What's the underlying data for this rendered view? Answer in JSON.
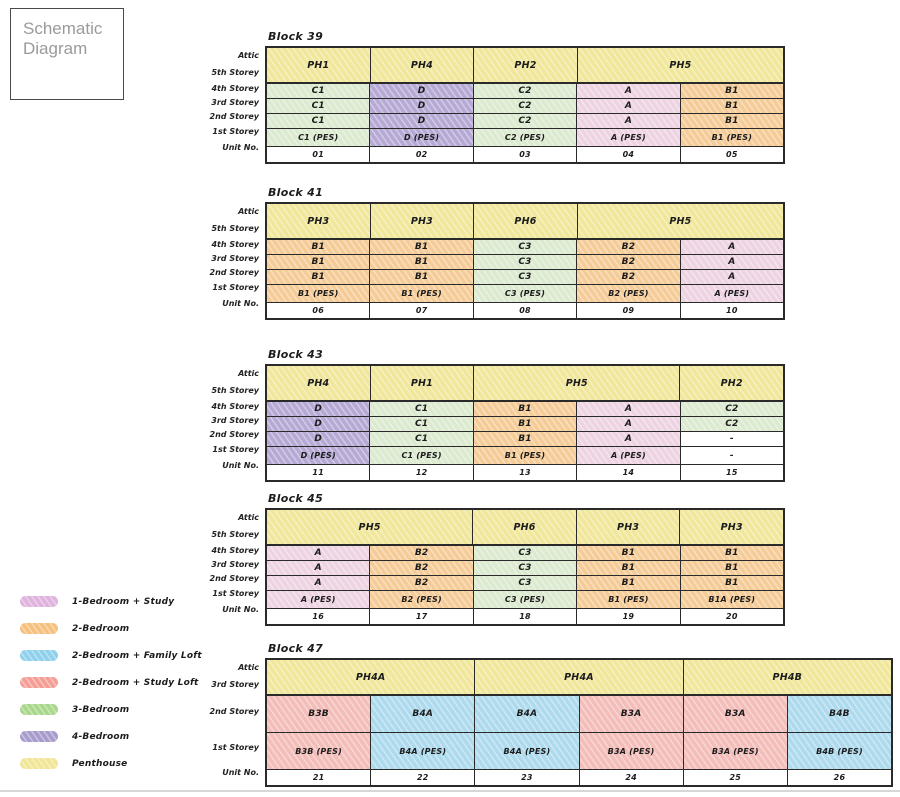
{
  "page_title": "Schematic Diagram",
  "cell_colors": {
    "penthouse": "#f1e79b",
    "one_bed_study": "#eed3e2",
    "two_bed": "#f5cc97",
    "two_bed_family_loft": "#aedaee",
    "two_bed_study_loft": "#f3bdb9",
    "three_bed": "#dcead0",
    "four_bed": "#b6aad5",
    "blank": "#ffffff"
  },
  "legend": [
    {
      "label": "1-Bedroom + Study",
      "color": "#dfb3de"
    },
    {
      "label": "2-Bedroom",
      "color": "#f6c07e"
    },
    {
      "label": "2-Bedroom + Family Loft",
      "color": "#8fd0ec"
    },
    {
      "label": "2-Bedroom + Study Loft",
      "color": "#f49e96"
    },
    {
      "label": "3-Bedroom",
      "color": "#a9d78b"
    },
    {
      "label": "4-Bedroom",
      "color": "#a89ccc"
    },
    {
      "label": "Penthouse",
      "color": "#f1e697"
    }
  ],
  "blocks": [
    {
      "title": "Block 39",
      "labels": {
        "attic_band": [
          "Attic",
          "5th Storey"
        ],
        "rows": [
          "4th Storey",
          "3rd Storey",
          "2nd Storey",
          "1st Storey"
        ],
        "unit": "Unit No."
      },
      "header_cells": [
        {
          "text": "PH1",
          "span": 1
        },
        {
          "text": "PH4",
          "span": 1
        },
        {
          "text": "PH2",
          "span": 1
        },
        {
          "text": "PH5",
          "span": 2
        }
      ],
      "body_rows": [
        [
          {
            "t": "C1",
            "c": "three_bed"
          },
          {
            "t": "D",
            "c": "four_bed"
          },
          {
            "t": "C2",
            "c": "three_bed"
          },
          {
            "t": "A",
            "c": "one_bed_study"
          },
          {
            "t": "B1",
            "c": "two_bed"
          }
        ],
        [
          {
            "t": "C1",
            "c": "three_bed"
          },
          {
            "t": "D",
            "c": "four_bed"
          },
          {
            "t": "C2",
            "c": "three_bed"
          },
          {
            "t": "A",
            "c": "one_bed_study"
          },
          {
            "t": "B1",
            "c": "two_bed"
          }
        ],
        [
          {
            "t": "C1",
            "c": "three_bed"
          },
          {
            "t": "D",
            "c": "four_bed"
          },
          {
            "t": "C2",
            "c": "three_bed"
          },
          {
            "t": "A",
            "c": "one_bed_study"
          },
          {
            "t": "B1",
            "c": "two_bed"
          }
        ],
        [
          {
            "t": "C1 (PES)",
            "c": "three_bed"
          },
          {
            "t": "D (PES)",
            "c": "four_bed"
          },
          {
            "t": "C2 (PES)",
            "c": "three_bed"
          },
          {
            "t": "A (PES)",
            "c": "one_bed_study"
          },
          {
            "t": "B1 (PES)",
            "c": "two_bed"
          }
        ]
      ],
      "unit_row": [
        "01",
        "02",
        "03",
        "04",
        "05"
      ]
    },
    {
      "title": "Block 41",
      "labels": {
        "attic_band": [
          "Attic",
          "5th Storey"
        ],
        "rows": [
          "4th Storey",
          "3rd Storey",
          "2nd Storey",
          "1st Storey"
        ],
        "unit": "Unit No."
      },
      "header_cells": [
        {
          "text": "PH3",
          "span": 1
        },
        {
          "text": "PH3",
          "span": 1
        },
        {
          "text": "PH6",
          "span": 1
        },
        {
          "text": "PH5",
          "span": 2
        }
      ],
      "body_rows": [
        [
          {
            "t": "B1",
            "c": "two_bed"
          },
          {
            "t": "B1",
            "c": "two_bed"
          },
          {
            "t": "C3",
            "c": "three_bed"
          },
          {
            "t": "B2",
            "c": "two_bed"
          },
          {
            "t": "A",
            "c": "one_bed_study"
          }
        ],
        [
          {
            "t": "B1",
            "c": "two_bed"
          },
          {
            "t": "B1",
            "c": "two_bed"
          },
          {
            "t": "C3",
            "c": "three_bed"
          },
          {
            "t": "B2",
            "c": "two_bed"
          },
          {
            "t": "A",
            "c": "one_bed_study"
          }
        ],
        [
          {
            "t": "B1",
            "c": "two_bed"
          },
          {
            "t": "B1",
            "c": "two_bed"
          },
          {
            "t": "C3",
            "c": "three_bed"
          },
          {
            "t": "B2",
            "c": "two_bed"
          },
          {
            "t": "A",
            "c": "one_bed_study"
          }
        ],
        [
          {
            "t": "B1 (PES)",
            "c": "two_bed"
          },
          {
            "t": "B1 (PES)",
            "c": "two_bed"
          },
          {
            "t": "C3 (PES)",
            "c": "three_bed"
          },
          {
            "t": "B2 (PES)",
            "c": "two_bed"
          },
          {
            "t": "A (PES)",
            "c": "one_bed_study"
          }
        ]
      ],
      "unit_row": [
        "06",
        "07",
        "08",
        "09",
        "10"
      ]
    },
    {
      "title": "Block 43",
      "labels": {
        "attic_band": [
          "Attic",
          "5th Storey"
        ],
        "rows": [
          "4th Storey",
          "3rd Storey",
          "2nd Storey",
          "1st Storey"
        ],
        "unit": "Unit No."
      },
      "header_cells": [
        {
          "text": "PH4",
          "span": 1
        },
        {
          "text": "PH1",
          "span": 1
        },
        {
          "text": "PH5",
          "span": 2
        },
        {
          "text": "PH2",
          "span": 1
        }
      ],
      "body_rows": [
        [
          {
            "t": "D",
            "c": "four_bed"
          },
          {
            "t": "C1",
            "c": "three_bed"
          },
          {
            "t": "B1",
            "c": "two_bed"
          },
          {
            "t": "A",
            "c": "one_bed_study"
          },
          {
            "t": "C2",
            "c": "three_bed"
          }
        ],
        [
          {
            "t": "D",
            "c": "four_bed"
          },
          {
            "t": "C1",
            "c": "three_bed"
          },
          {
            "t": "B1",
            "c": "two_bed"
          },
          {
            "t": "A",
            "c": "one_bed_study"
          },
          {
            "t": "C2",
            "c": "three_bed"
          }
        ],
        [
          {
            "t": "D",
            "c": "four_bed"
          },
          {
            "t": "C1",
            "c": "three_bed"
          },
          {
            "t": "B1",
            "c": "two_bed"
          },
          {
            "t": "A",
            "c": "one_bed_study"
          },
          {
            "t": "-",
            "c": "blank"
          }
        ],
        [
          {
            "t": "D (PES)",
            "c": "four_bed"
          },
          {
            "t": "C1 (PES)",
            "c": "three_bed"
          },
          {
            "t": "B1 (PES)",
            "c": "two_bed"
          },
          {
            "t": "A (PES)",
            "c": "one_bed_study"
          },
          {
            "t": "-",
            "c": "blank"
          }
        ]
      ],
      "unit_row": [
        "11",
        "12",
        "13",
        "14",
        "15"
      ]
    },
    {
      "title": "Block 45",
      "labels": {
        "attic_band": [
          "Attic",
          "5th Storey"
        ],
        "rows": [
          "4th Storey",
          "3rd Storey",
          "2nd Storey",
          "1st Storey"
        ],
        "unit": "Unit No."
      },
      "header_cells": [
        {
          "text": "PH5",
          "span": 2
        },
        {
          "text": "PH6",
          "span": 1
        },
        {
          "text": "PH3",
          "span": 1
        },
        {
          "text": "PH3",
          "span": 1
        }
      ],
      "body_rows": [
        [
          {
            "t": "A",
            "c": "one_bed_study"
          },
          {
            "t": "B2",
            "c": "two_bed"
          },
          {
            "t": "C3",
            "c": "three_bed"
          },
          {
            "t": "B1",
            "c": "two_bed"
          },
          {
            "t": "B1",
            "c": "two_bed"
          }
        ],
        [
          {
            "t": "A",
            "c": "one_bed_study"
          },
          {
            "t": "B2",
            "c": "two_bed"
          },
          {
            "t": "C3",
            "c": "three_bed"
          },
          {
            "t": "B1",
            "c": "two_bed"
          },
          {
            "t": "B1",
            "c": "two_bed"
          }
        ],
        [
          {
            "t": "A",
            "c": "one_bed_study"
          },
          {
            "t": "B2",
            "c": "two_bed"
          },
          {
            "t": "C3",
            "c": "three_bed"
          },
          {
            "t": "B1",
            "c": "two_bed"
          },
          {
            "t": "B1",
            "c": "two_bed"
          }
        ],
        [
          {
            "t": "A (PES)",
            "c": "one_bed_study"
          },
          {
            "t": "B2 (PES)",
            "c": "two_bed"
          },
          {
            "t": "C3 (PES)",
            "c": "three_bed"
          },
          {
            "t": "B1 (PES)",
            "c": "two_bed"
          },
          {
            "t": "B1A (PES)",
            "c": "two_bed"
          }
        ]
      ],
      "unit_row": [
        "16",
        "17",
        "18",
        "19",
        "20"
      ]
    },
    {
      "title": "Block 47",
      "labels": {
        "attic_band": [
          "Attic",
          "3rd Storey"
        ],
        "rows": [
          "2nd Storey",
          "1st Storey"
        ],
        "unit": "Unit No."
      },
      "header_cells": [
        {
          "text": "PH4A",
          "span": 2
        },
        {
          "text": "PH4A",
          "span": 2
        },
        {
          "text": "PH4B",
          "span": 2
        }
      ],
      "body_rows": [
        [
          {
            "t": "B3B",
            "c": "two_bed_study_loft"
          },
          {
            "t": "B4A",
            "c": "two_bed_family_loft"
          },
          {
            "t": "B4A",
            "c": "two_bed_family_loft"
          },
          {
            "t": "B3A",
            "c": "two_bed_study_loft"
          },
          {
            "t": "B3A",
            "c": "two_bed_study_loft"
          },
          {
            "t": "B4B",
            "c": "two_bed_family_loft"
          }
        ],
        [
          {
            "t": "B3B (PES)",
            "c": "two_bed_study_loft"
          },
          {
            "t": "B4A (PES)",
            "c": "two_bed_family_loft"
          },
          {
            "t": "B4A (PES)",
            "c": "two_bed_family_loft"
          },
          {
            "t": "B3A (PES)",
            "c": "two_bed_study_loft"
          },
          {
            "t": "B3A (PES)",
            "c": "two_bed_study_loft"
          },
          {
            "t": "B4B (PES)",
            "c": "two_bed_family_loft"
          }
        ]
      ],
      "unit_row": [
        "21",
        "22",
        "23",
        "24",
        "25",
        "26"
      ]
    }
  ]
}
